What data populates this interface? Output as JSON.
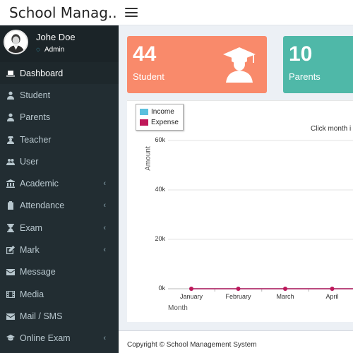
{
  "header": {
    "brand": "School Manag..",
    "menu_toggle_icon": "hamburger-icon"
  },
  "user": {
    "name": "Johe Doe",
    "role": "Admin",
    "status_icon": "circle-dot-icon",
    "status_color": "#3fc1e0"
  },
  "sidebar": {
    "items": [
      {
        "label": "Dashboard",
        "icon": "laptop-icon",
        "active": true,
        "has_children": false
      },
      {
        "label": "Student",
        "icon": "user-icon",
        "active": false,
        "has_children": false
      },
      {
        "label": "Parents",
        "icon": "user-icon",
        "active": false,
        "has_children": false
      },
      {
        "label": "Teacher",
        "icon": "user-secret-icon",
        "active": false,
        "has_children": false
      },
      {
        "label": "User",
        "icon": "users-icon",
        "active": false,
        "has_children": false
      },
      {
        "label": "Academic",
        "icon": "university-icon",
        "active": false,
        "has_children": true
      },
      {
        "label": "Attendance",
        "icon": "clipboard-icon",
        "active": false,
        "has_children": true
      },
      {
        "label": "Exam",
        "icon": "hourglass-icon",
        "active": false,
        "has_children": true
      },
      {
        "label": "Mark",
        "icon": "edit-icon",
        "active": false,
        "has_children": true
      },
      {
        "label": "Message",
        "icon": "envelope-icon",
        "active": false,
        "has_children": false
      },
      {
        "label": "Media",
        "icon": "film-icon",
        "active": false,
        "has_children": false
      },
      {
        "label": "Mail / SMS",
        "icon": "envelope-icon",
        "active": false,
        "has_children": false
      },
      {
        "label": "Online Exam",
        "icon": "graduation-cap-icon",
        "active": false,
        "has_children": true
      }
    ]
  },
  "stats": [
    {
      "value": "44",
      "label": "Student",
      "color": "#f98a6b",
      "icon": "graduate-icon"
    },
    {
      "value": "10",
      "label": "Parents",
      "color": "#4fb8a8",
      "icon": ""
    }
  ],
  "chart": {
    "hint": "Click month i"
  },
  "chart_data": {
    "type": "line",
    "categories": [
      "January",
      "February",
      "March",
      "April"
    ],
    "series": [
      {
        "name": "Income",
        "color": "#5bc0de",
        "values": [
          0,
          0,
          0,
          0
        ]
      },
      {
        "name": "Expense",
        "color": "#c0185a",
        "values": [
          0,
          0,
          0,
          0
        ]
      }
    ],
    "xlabel": "Month",
    "ylabel": "Amount",
    "yticks": [
      "0k",
      "20k",
      "40k",
      "60k"
    ],
    "ylim": [
      0,
      60000
    ],
    "grid": true,
    "legend": "top-left"
  },
  "footer": {
    "text": "Copyright © School Management System"
  }
}
